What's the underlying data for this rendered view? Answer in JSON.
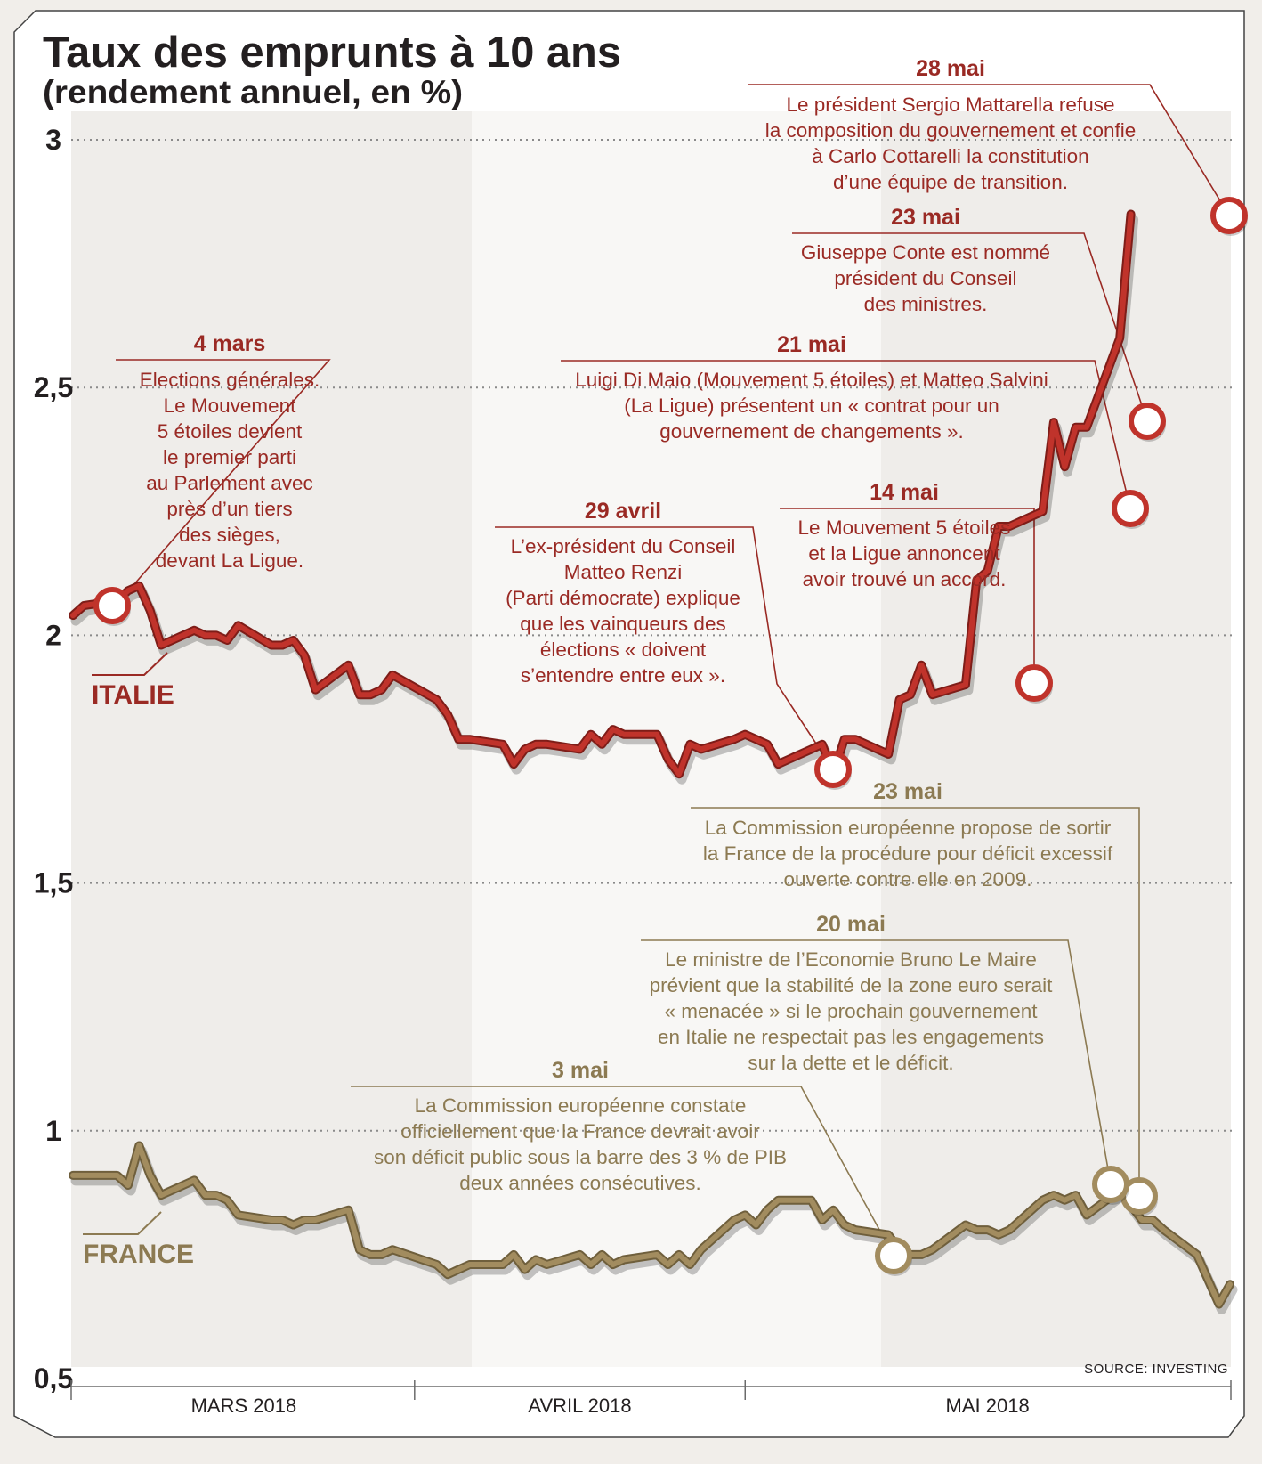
{
  "chart_data": {
    "type": "line",
    "title": "Taux des emprunts à 10 ans",
    "subtitle": "(rendement annuel, en %)",
    "source": "SOURCE: INVESTING",
    "ylim": [
      0.5,
      3
    ],
    "yticks": [
      {
        "value": 3,
        "label": "3"
      },
      {
        "value": 2.5,
        "label": "2,5"
      },
      {
        "value": 2,
        "label": "2"
      },
      {
        "value": 1.5,
        "label": "1,5"
      },
      {
        "value": 1,
        "label": "1"
      },
      {
        "value": 0.5,
        "label": "0,5"
      }
    ],
    "months": [
      "MARS 2018",
      "AVRIL 2018",
      "MAI 2018"
    ],
    "grid": true,
    "series": [
      {
        "name": "ITALIE",
        "color": "#c0332b",
        "points": [
          [
            "2018-03-01",
            2.04
          ],
          [
            "2018-03-02",
            2.06
          ],
          [
            "2018-03-05",
            2.07
          ],
          [
            "2018-03-06",
            2.09
          ],
          [
            "2018-03-07",
            2.1
          ],
          [
            "2018-03-08",
            2.05
          ],
          [
            "2018-03-09",
            1.98
          ],
          [
            "2018-03-12",
            2.01
          ],
          [
            "2018-03-13",
            2.0
          ],
          [
            "2018-03-14",
            2.0
          ],
          [
            "2018-03-15",
            1.99
          ],
          [
            "2018-03-16",
            2.02
          ],
          [
            "2018-03-19",
            1.98
          ],
          [
            "2018-03-20",
            1.98
          ],
          [
            "2018-03-21",
            1.99
          ],
          [
            "2018-03-22",
            1.96
          ],
          [
            "2018-03-23",
            1.89
          ],
          [
            "2018-03-26",
            1.94
          ],
          [
            "2018-03-27",
            1.88
          ],
          [
            "2018-03-28",
            1.88
          ],
          [
            "2018-03-29",
            1.89
          ],
          [
            "2018-03-30",
            1.92
          ],
          [
            "2018-04-03",
            1.87
          ],
          [
            "2018-04-04",
            1.84
          ],
          [
            "2018-04-05",
            1.79
          ],
          [
            "2018-04-06",
            1.79
          ],
          [
            "2018-04-09",
            1.78
          ],
          [
            "2018-04-10",
            1.74
          ],
          [
            "2018-04-11",
            1.77
          ],
          [
            "2018-04-12",
            1.78
          ],
          [
            "2018-04-13",
            1.78
          ],
          [
            "2018-04-16",
            1.77
          ],
          [
            "2018-04-17",
            1.8
          ],
          [
            "2018-04-18",
            1.78
          ],
          [
            "2018-04-19",
            1.81
          ],
          [
            "2018-04-20",
            1.8
          ],
          [
            "2018-04-23",
            1.8
          ],
          [
            "2018-04-24",
            1.75
          ],
          [
            "2018-04-25",
            1.72
          ],
          [
            "2018-04-26",
            1.78
          ],
          [
            "2018-04-27",
            1.77
          ],
          [
            "2018-04-30",
            1.79
          ],
          [
            "2018-05-01",
            1.8
          ],
          [
            "2018-05-02",
            1.79
          ],
          [
            "2018-05-03",
            1.78
          ],
          [
            "2018-05-04",
            1.74
          ],
          [
            "2018-05-07",
            1.77
          ],
          [
            "2018-05-08",
            1.78
          ],
          [
            "2018-05-09",
            1.72
          ],
          [
            "2018-05-10",
            1.79
          ],
          [
            "2018-05-11",
            1.79
          ],
          [
            "2018-05-14",
            1.76
          ],
          [
            "2018-05-15",
            1.87
          ],
          [
            "2018-05-16",
            1.88
          ],
          [
            "2018-05-17",
            1.94
          ],
          [
            "2018-05-18",
            1.88
          ],
          [
            "2018-05-21",
            1.9
          ],
          [
            "2018-05-22",
            2.11
          ],
          [
            "2018-05-23",
            2.13
          ],
          [
            "2018-05-24",
            2.22
          ],
          [
            "2018-05-25",
            2.22
          ],
          [
            "2018-05-28",
            2.25
          ],
          [
            "2018-05-29",
            2.43
          ],
          [
            "2018-05-30",
            2.34
          ],
          [
            "2018-05-31",
            2.42
          ],
          [
            "2018-06-01",
            2.42
          ],
          [
            "2018-06-04",
            2.6
          ],
          [
            "2018-06-05",
            2.85
          ]
        ]
      },
      {
        "name": "FRANCE",
        "color": "#a28c5f",
        "points": [
          [
            "2018-03-01",
            0.91
          ],
          [
            "2018-03-02",
            0.91
          ],
          [
            "2018-03-05",
            0.91
          ],
          [
            "2018-03-06",
            0.89
          ],
          [
            "2018-03-07",
            0.97
          ],
          [
            "2018-03-08",
            0.91
          ],
          [
            "2018-03-09",
            0.87
          ],
          [
            "2018-03-12",
            0.9
          ],
          [
            "2018-03-13",
            0.87
          ],
          [
            "2018-03-14",
            0.87
          ],
          [
            "2018-03-15",
            0.86
          ],
          [
            "2018-03-16",
            0.83
          ],
          [
            "2018-03-19",
            0.82
          ],
          [
            "2018-03-20",
            0.82
          ],
          [
            "2018-03-21",
            0.81
          ],
          [
            "2018-03-22",
            0.82
          ],
          [
            "2018-03-23",
            0.82
          ],
          [
            "2018-03-26",
            0.84
          ],
          [
            "2018-03-27",
            0.76
          ],
          [
            "2018-03-28",
            0.75
          ],
          [
            "2018-03-29",
            0.75
          ],
          [
            "2018-03-30",
            0.76
          ],
          [
            "2018-04-03",
            0.73
          ],
          [
            "2018-04-04",
            0.71
          ],
          [
            "2018-04-05",
            0.72
          ],
          [
            "2018-04-06",
            0.73
          ],
          [
            "2018-04-09",
            0.73
          ],
          [
            "2018-04-10",
            0.75
          ],
          [
            "2018-04-11",
            0.72
          ],
          [
            "2018-04-12",
            0.74
          ],
          [
            "2018-04-13",
            0.73
          ],
          [
            "2018-04-16",
            0.75
          ],
          [
            "2018-04-17",
            0.73
          ],
          [
            "2018-04-18",
            0.75
          ],
          [
            "2018-04-19",
            0.73
          ],
          [
            "2018-04-20",
            0.74
          ],
          [
            "2018-04-23",
            0.75
          ],
          [
            "2018-04-24",
            0.73
          ],
          [
            "2018-04-25",
            0.75
          ],
          [
            "2018-04-26",
            0.73
          ],
          [
            "2018-04-27",
            0.76
          ],
          [
            "2018-04-30",
            0.82
          ],
          [
            "2018-05-01",
            0.83
          ],
          [
            "2018-05-02",
            0.81
          ],
          [
            "2018-05-03",
            0.84
          ],
          [
            "2018-05-04",
            0.86
          ],
          [
            "2018-05-07",
            0.86
          ],
          [
            "2018-05-08",
            0.82
          ],
          [
            "2018-05-09",
            0.84
          ],
          [
            "2018-05-10",
            0.81
          ],
          [
            "2018-05-11",
            0.8
          ],
          [
            "2018-05-14",
            0.79
          ],
          [
            "2018-05-15",
            0.76
          ],
          [
            "2018-05-16",
            0.75
          ],
          [
            "2018-05-17",
            0.75
          ],
          [
            "2018-05-18",
            0.76
          ],
          [
            "2018-05-21",
            0.81
          ],
          [
            "2018-05-22",
            0.8
          ],
          [
            "2018-05-23",
            0.8
          ],
          [
            "2018-05-24",
            0.79
          ],
          [
            "2018-05-25",
            0.8
          ],
          [
            "2018-05-28",
            0.86
          ],
          [
            "2018-05-29",
            0.87
          ],
          [
            "2018-05-30",
            0.86
          ],
          [
            "2018-05-31",
            0.87
          ],
          [
            "2018-06-01",
            0.83
          ],
          [
            "2018-06-04",
            0.88
          ],
          [
            "2018-06-05",
            0.85
          ],
          [
            "2018-06-06",
            0.82
          ],
          [
            "2018-06-07",
            0.82
          ],
          [
            "2018-06-08",
            0.8
          ],
          [
            "2018-06-11",
            0.75
          ],
          [
            "2018-06-12",
            0.7
          ],
          [
            "2018-06-13",
            0.65
          ],
          [
            "2018-06-14",
            0.69
          ]
        ]
      }
    ],
    "annotations": [
      {
        "series": "ITALIE",
        "date": "4 mars",
        "lines": [
          "Elections générales.",
          "Le Mouvement",
          "5 étoiles devient",
          "le premier parti",
          "au Parlement avec",
          "près d’un tiers",
          "des sièges,",
          "devant La Ligue."
        ]
      },
      {
        "series": "ITALIE",
        "date": "29 avril",
        "lines": [
          "L’ex-président du Conseil",
          "Matteo Renzi",
          "(Parti démocrate) explique",
          "que les vainqueurs des",
          "élections « doivent",
          "s’entendre entre eux »."
        ]
      },
      {
        "series": "ITALIE",
        "date": "14 mai",
        "lines": [
          "Le Mouvement 5 étoiles",
          "et la Ligue annoncent",
          "avoir trouvé un accord."
        ]
      },
      {
        "series": "ITALIE",
        "date": "21 mai",
        "lines": [
          "Luigi Di Maio (Mouvement 5 étoiles) et Matteo Salvini",
          "(La Ligue) présentent un « contrat pour un",
          "gouvernement de changements »."
        ]
      },
      {
        "series": "ITALIE",
        "date": "23 mai",
        "lines": [
          "Giuseppe Conte est nommé",
          "président du Conseil",
          "des ministres."
        ]
      },
      {
        "series": "ITALIE",
        "date": "28 mai",
        "lines": [
          "Le président Sergio Mattarella refuse",
          "la composition du gouvernement et confie",
          "à Carlo Cottarelli la constitution",
          "d’une équipe de transition."
        ]
      },
      {
        "series": "FRANCE",
        "date": "23 mai",
        "lines": [
          "La Commission européenne propose de sortir",
          "la France de la procédure pour déficit excessif",
          "ouverte contre elle en 2009."
        ]
      },
      {
        "series": "FRANCE",
        "date": "20 mai",
        "lines": [
          "Le ministre de l’Economie Bruno Le Maire",
          "prévient que la stabilité de la zone euro serait",
          "« menacée » si le prochain gouvernement",
          "en Italie ne respectait pas les engagements",
          "sur la dette et le déficit."
        ]
      },
      {
        "series": "FRANCE",
        "date": "3 mai",
        "lines": [
          "La Commission européenne constate",
          "officiellement que la France devrait avoir",
          "son déficit public sous la barre des 3 % de PIB",
          "deux années consécutives."
        ]
      }
    ]
  }
}
